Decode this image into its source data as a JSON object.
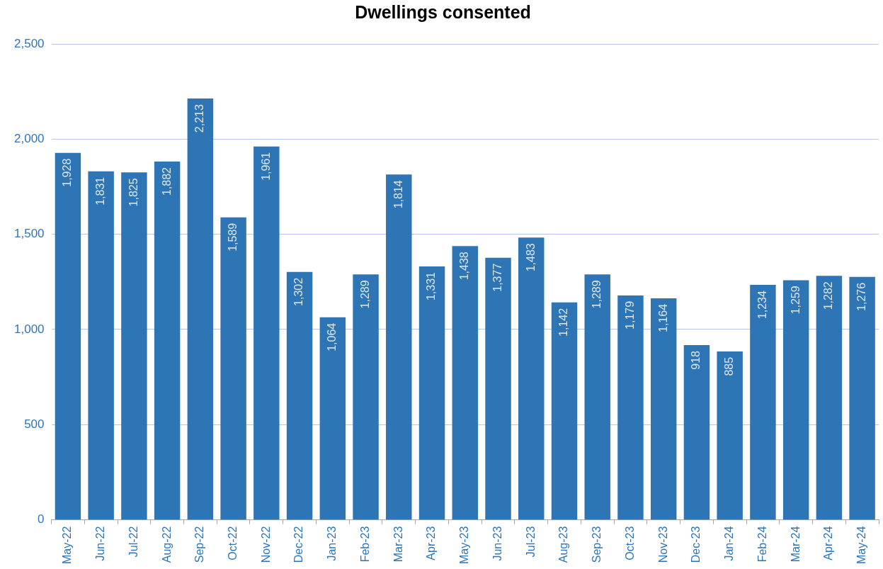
{
  "chart_data": {
    "type": "bar",
    "title": "Dwellings consented",
    "categories": [
      "May-22",
      "Jun-22",
      "Jul-22",
      "Aug-22",
      "Sep-22",
      "Oct-22",
      "Nov-22",
      "Dec-22",
      "Jan-23",
      "Feb-23",
      "Mar-23",
      "Apr-23",
      "May-23",
      "Jun-23",
      "Jul-23",
      "Aug-23",
      "Sep-23",
      "Oct-23",
      "Nov-23",
      "Dec-23",
      "Jan-24",
      "Feb-24",
      "Mar-24",
      "Apr-24",
      "May-24"
    ],
    "values": [
      1928,
      1831,
      1825,
      1882,
      2213,
      1589,
      1961,
      1302,
      1064,
      1289,
      1814,
      1331,
      1438,
      1377,
      1483,
      1142,
      1289,
      1179,
      1164,
      918,
      885,
      1234,
      1259,
      1282,
      1276
    ],
    "value_labels": [
      "1,928",
      "1,831",
      "1,825",
      "1,882",
      "2,213",
      "1,589",
      "1,961",
      "1,302",
      "1,064",
      "1,289",
      "1,814",
      "1,331",
      "1,438",
      "1,377",
      "1,483",
      "1,142",
      "1,289",
      "1,179",
      "1,164",
      "918",
      "885",
      "1,234",
      "1,259",
      "1,282",
      "1,276"
    ],
    "color": "#2e75b6",
    "ylim": [
      0,
      2500
    ],
    "yticks": [
      0,
      500,
      {
        "value": 1000,
        "label": "1,000"
      },
      {
        "value": 1500,
        "label": "1,500"
      },
      {
        "value": 2000,
        "label": "2,000"
      },
      {
        "value": 2500,
        "label": "2,500"
      }
    ],
    "grid": "y"
  }
}
